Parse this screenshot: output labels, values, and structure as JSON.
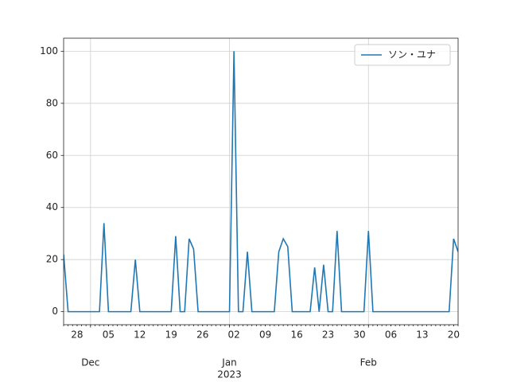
{
  "chart_data": {
    "type": "line",
    "x": [
      "2022-11-25",
      "2022-11-26",
      "2022-11-27",
      "2022-11-28",
      "2022-11-29",
      "2022-11-30",
      "2022-12-01",
      "2022-12-02",
      "2022-12-03",
      "2022-12-04",
      "2022-12-05",
      "2022-12-06",
      "2022-12-07",
      "2022-12-08",
      "2022-12-09",
      "2022-12-10",
      "2022-12-11",
      "2022-12-12",
      "2022-12-13",
      "2022-12-14",
      "2022-12-15",
      "2022-12-16",
      "2022-12-17",
      "2022-12-18",
      "2022-12-19",
      "2022-12-20",
      "2022-12-21",
      "2022-12-22",
      "2022-12-23",
      "2022-12-24",
      "2022-12-25",
      "2022-12-26",
      "2022-12-27",
      "2022-12-28",
      "2022-12-29",
      "2022-12-30",
      "2022-12-31",
      "2023-01-01",
      "2023-01-02",
      "2023-01-03",
      "2023-01-04",
      "2023-01-05",
      "2023-01-06",
      "2023-01-07",
      "2023-01-08",
      "2023-01-09",
      "2023-01-10",
      "2023-01-11",
      "2023-01-12",
      "2023-01-13",
      "2023-01-14",
      "2023-01-15",
      "2023-01-16",
      "2023-01-17",
      "2023-01-18",
      "2023-01-19",
      "2023-01-20",
      "2023-01-21",
      "2023-01-22",
      "2023-01-23",
      "2023-01-24",
      "2023-01-25",
      "2023-01-26",
      "2023-01-27",
      "2023-01-28",
      "2023-01-29",
      "2023-01-30",
      "2023-01-31",
      "2023-02-01",
      "2023-02-02",
      "2023-02-03",
      "2023-02-04",
      "2023-02-05",
      "2023-02-06",
      "2023-02-07",
      "2023-02-08",
      "2023-02-09",
      "2023-02-10",
      "2023-02-11",
      "2023-02-12",
      "2023-02-13",
      "2023-02-14",
      "2023-02-15",
      "2023-02-16",
      "2023-02-17",
      "2023-02-18",
      "2023-02-19",
      "2023-02-20",
      "2023-02-21"
    ],
    "series": [
      {
        "name": "ソン・ユナ",
        "color": "#1f77b4",
        "values": [
          22,
          0,
          0,
          0,
          0,
          0,
          0,
          0,
          0,
          34,
          0,
          0,
          0,
          0,
          0,
          0,
          20,
          0,
          0,
          0,
          0,
          0,
          0,
          0,
          0,
          29,
          0,
          0,
          28,
          24,
          0,
          0,
          0,
          0,
          0,
          0,
          0,
          0,
          100,
          0,
          0,
          23,
          0,
          0,
          0,
          0,
          0,
          0,
          23,
          28,
          25,
          0,
          0,
          0,
          0,
          0,
          17,
          0,
          18,
          0,
          0,
          31,
          0,
          0,
          0,
          0,
          0,
          0,
          31,
          0,
          0,
          0,
          0,
          0,
          0,
          0,
          0,
          0,
          0,
          0,
          0,
          0,
          0,
          0,
          0,
          0,
          0,
          28,
          23
        ]
      }
    ],
    "xlim": [
      "2022-11-25",
      "2023-02-21"
    ],
    "xticks": [
      {
        "value": "2022-11-28",
        "label": "28"
      },
      {
        "value": "2022-12-05",
        "label": "05"
      },
      {
        "value": "2022-12-12",
        "label": "12"
      },
      {
        "value": "2022-12-19",
        "label": "19"
      },
      {
        "value": "2022-12-26",
        "label": "26"
      },
      {
        "value": "2023-01-02",
        "label": "02"
      },
      {
        "value": "2023-01-09",
        "label": "09"
      },
      {
        "value": "2023-01-16",
        "label": "16"
      },
      {
        "value": "2023-01-23",
        "label": "23"
      },
      {
        "value": "2023-01-30",
        "label": "30"
      },
      {
        "value": "2023-02-06",
        "label": "06"
      },
      {
        "value": "2023-02-13",
        "label": "13"
      },
      {
        "value": "2023-02-20",
        "label": "20"
      }
    ],
    "month_ticks": [
      {
        "value": "2022-12-01",
        "label": [
          "Dec"
        ]
      },
      {
        "value": "2023-01-01",
        "label": [
          "Jan",
          "2023"
        ]
      },
      {
        "value": "2023-02-01",
        "label": [
          "Feb"
        ]
      }
    ],
    "ylim": [
      -5,
      105
    ],
    "yticks": [
      0,
      20,
      40,
      60,
      80,
      100
    ],
    "grid": true,
    "legend": "upper right"
  }
}
